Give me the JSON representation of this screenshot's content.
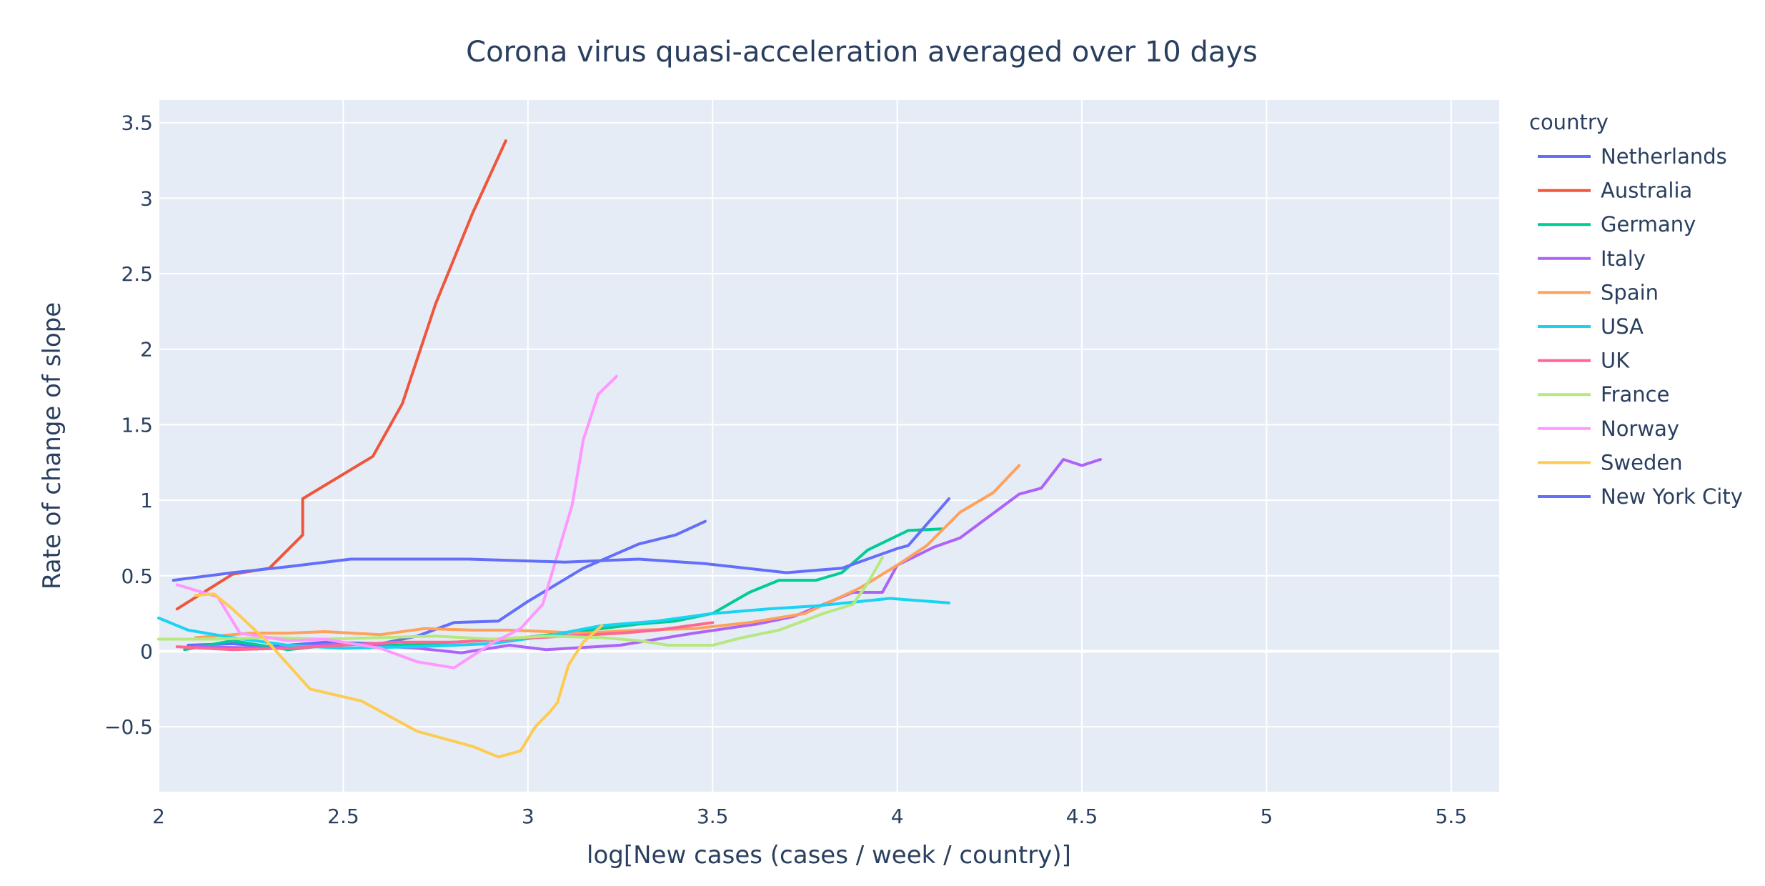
{
  "chart_data": {
    "type": "line",
    "title": "Corona virus quasi-acceleration averaged over 10 days",
    "xlabel": "log[New cases (cases / week / country)]",
    "ylabel": "Rate of change of slope",
    "xlim": [
      2.0,
      5.63
    ],
    "ylim": [
      -0.93,
      3.65
    ],
    "x_ticks": [
      2,
      2.5,
      3,
      3.5,
      4,
      4.5,
      5,
      5.5
    ],
    "x_tick_labels": [
      "2",
      "2.5",
      "3",
      "3.5",
      "4",
      "4.5",
      "5",
      "5.5"
    ],
    "y_ticks": [
      -0.5,
      0,
      0.5,
      1,
      1.5,
      2,
      2.5,
      3,
      3.5
    ],
    "y_tick_labels": [
      "−0.5",
      "0",
      "0.5",
      "1",
      "1.5",
      "2",
      "2.5",
      "3",
      "3.5"
    ],
    "grid": true,
    "legend_title": "country",
    "legend_position": "right",
    "series": [
      {
        "name": "Netherlands",
        "color": "#636efa",
        "points": [
          [
            2.08,
            0.04
          ],
          [
            2.2,
            0.05
          ],
          [
            2.3,
            0.03
          ],
          [
            2.45,
            0.06
          ],
          [
            2.6,
            0.05
          ],
          [
            2.7,
            0.1
          ],
          [
            2.8,
            0.19
          ],
          [
            2.92,
            0.2
          ],
          [
            3.0,
            0.33
          ],
          [
            3.15,
            0.55
          ],
          [
            3.3,
            0.71
          ],
          [
            3.4,
            0.77
          ],
          [
            3.48,
            0.86
          ]
        ]
      },
      {
        "name": "Australia",
        "color": "#ef553b",
        "points": [
          [
            2.05,
            0.28
          ],
          [
            2.2,
            0.51
          ],
          [
            2.3,
            0.55
          ],
          [
            2.39,
            0.77
          ],
          [
            2.39,
            1.01
          ],
          [
            2.58,
            1.29
          ],
          [
            2.66,
            1.64
          ],
          [
            2.75,
            2.3
          ],
          [
            2.85,
            2.9
          ],
          [
            2.94,
            3.38
          ]
        ]
      },
      {
        "name": "Germany",
        "color": "#00cc96",
        "points": [
          [
            2.07,
            0.01
          ],
          [
            2.2,
            0.07
          ],
          [
            2.35,
            0.01
          ],
          [
            2.5,
            0.05
          ],
          [
            2.65,
            0.04
          ],
          [
            2.8,
            0.06
          ],
          [
            2.95,
            0.08
          ],
          [
            3.1,
            0.12
          ],
          [
            3.3,
            0.18
          ],
          [
            3.4,
            0.2
          ],
          [
            3.5,
            0.25
          ],
          [
            3.6,
            0.39
          ],
          [
            3.68,
            0.47
          ],
          [
            3.78,
            0.47
          ],
          [
            3.85,
            0.52
          ],
          [
            3.92,
            0.67
          ],
          [
            4.03,
            0.8
          ],
          [
            4.12,
            0.81
          ]
        ]
      },
      {
        "name": "Italy",
        "color": "#ab63fa",
        "points": [
          [
            2.1,
            0.03
          ],
          [
            2.3,
            0.02
          ],
          [
            2.5,
            0.05
          ],
          [
            2.7,
            0.02
          ],
          [
            2.82,
            -0.01
          ],
          [
            2.95,
            0.04
          ],
          [
            3.05,
            0.01
          ],
          [
            3.25,
            0.04
          ],
          [
            3.45,
            0.12
          ],
          [
            3.62,
            0.18
          ],
          [
            3.72,
            0.23
          ],
          [
            3.88,
            0.39
          ],
          [
            3.96,
            0.39
          ],
          [
            4.0,
            0.57
          ],
          [
            4.1,
            0.69
          ],
          [
            4.17,
            0.75
          ],
          [
            4.33,
            1.04
          ],
          [
            4.39,
            1.08
          ],
          [
            4.45,
            1.27
          ],
          [
            4.5,
            1.23
          ],
          [
            4.55,
            1.27
          ]
        ]
      },
      {
        "name": "Spain",
        "color": "#ffa15a",
        "points": [
          [
            2.1,
            0.09
          ],
          [
            2.25,
            0.12
          ],
          [
            2.35,
            0.12
          ],
          [
            2.45,
            0.13
          ],
          [
            2.6,
            0.11
          ],
          [
            2.72,
            0.15
          ],
          [
            2.85,
            0.14
          ],
          [
            2.95,
            0.14
          ],
          [
            3.05,
            0.13
          ],
          [
            3.15,
            0.12
          ],
          [
            3.3,
            0.14
          ],
          [
            3.45,
            0.15
          ],
          [
            3.6,
            0.19
          ],
          [
            3.75,
            0.25
          ],
          [
            3.9,
            0.42
          ],
          [
            4.0,
            0.57
          ],
          [
            4.08,
            0.7
          ],
          [
            4.17,
            0.92
          ],
          [
            4.26,
            1.05
          ],
          [
            4.33,
            1.23
          ]
        ]
      },
      {
        "name": "USA",
        "color": "#19d3f3",
        "points": [
          [
            2.0,
            0.22
          ],
          [
            2.08,
            0.14
          ],
          [
            2.2,
            0.09
          ],
          [
            2.35,
            0.04
          ],
          [
            2.5,
            0.02
          ],
          [
            2.7,
            0.03
          ],
          [
            2.9,
            0.05
          ],
          [
            3.05,
            0.1
          ],
          [
            3.2,
            0.17
          ],
          [
            3.35,
            0.2
          ],
          [
            3.5,
            0.25
          ],
          [
            3.65,
            0.28
          ],
          [
            3.78,
            0.3
          ],
          [
            3.9,
            0.33
          ],
          [
            3.98,
            0.35
          ],
          [
            4.14,
            0.32
          ]
        ]
      },
      {
        "name": "UK",
        "color": "#ff6692",
        "points": [
          [
            2.05,
            0.03
          ],
          [
            2.2,
            0.01
          ],
          [
            2.35,
            0.02
          ],
          [
            2.5,
            0.04
          ],
          [
            2.65,
            0.06
          ],
          [
            2.8,
            0.06
          ],
          [
            2.95,
            0.08
          ],
          [
            3.1,
            0.1
          ],
          [
            3.25,
            0.12
          ],
          [
            3.35,
            0.14
          ],
          [
            3.5,
            0.19
          ]
        ]
      },
      {
        "name": "France",
        "color": "#b6e880",
        "points": [
          [
            2.0,
            0.08
          ],
          [
            2.15,
            0.08
          ],
          [
            2.3,
            0.09
          ],
          [
            2.45,
            0.08
          ],
          [
            2.6,
            0.09
          ],
          [
            2.75,
            0.1
          ],
          [
            2.9,
            0.08
          ],
          [
            3.05,
            0.1
          ],
          [
            3.2,
            0.09
          ],
          [
            3.3,
            0.07
          ],
          [
            3.38,
            0.04
          ],
          [
            3.5,
            0.04
          ],
          [
            3.58,
            0.09
          ],
          [
            3.68,
            0.14
          ],
          [
            3.8,
            0.25
          ],
          [
            3.88,
            0.31
          ],
          [
            3.92,
            0.45
          ],
          [
            3.96,
            0.62
          ]
        ]
      },
      {
        "name": "Norway",
        "color": "#ff97ff",
        "points": [
          [
            2.05,
            0.44
          ],
          [
            2.16,
            0.36
          ],
          [
            2.22,
            0.12
          ],
          [
            2.35,
            0.07
          ],
          [
            2.45,
            0.08
          ],
          [
            2.6,
            0.02
          ],
          [
            2.7,
            -0.07
          ],
          [
            2.8,
            -0.11
          ],
          [
            2.9,
            0.05
          ],
          [
            2.98,
            0.15
          ],
          [
            3.04,
            0.31
          ],
          [
            3.12,
            0.97
          ],
          [
            3.15,
            1.4
          ],
          [
            3.19,
            1.7
          ],
          [
            3.24,
            1.82
          ]
        ]
      },
      {
        "name": "Sweden",
        "color": "#fecb52",
        "points": [
          [
            2.1,
            0.37
          ],
          [
            2.15,
            0.38
          ],
          [
            2.2,
            0.28
          ],
          [
            2.3,
            0.05
          ],
          [
            2.41,
            -0.25
          ],
          [
            2.55,
            -0.33
          ],
          [
            2.7,
            -0.53
          ],
          [
            2.85,
            -0.63
          ],
          [
            2.92,
            -0.7
          ],
          [
            2.98,
            -0.66
          ],
          [
            3.02,
            -0.5
          ],
          [
            3.06,
            -0.4
          ],
          [
            3.08,
            -0.34
          ],
          [
            3.11,
            -0.09
          ],
          [
            3.15,
            0.06
          ],
          [
            3.2,
            0.17
          ]
        ]
      },
      {
        "name": "New York City",
        "color": "#636efa",
        "points": [
          [
            2.04,
            0.47
          ],
          [
            2.2,
            0.52
          ],
          [
            2.35,
            0.56
          ],
          [
            2.52,
            0.61
          ],
          [
            2.6,
            0.61
          ],
          [
            2.84,
            0.61
          ],
          [
            3.1,
            0.59
          ],
          [
            3.3,
            0.61
          ],
          [
            3.48,
            0.58
          ],
          [
            3.7,
            0.52
          ],
          [
            3.85,
            0.55
          ],
          [
            4.0,
            0.68
          ],
          [
            4.03,
            0.7
          ],
          [
            4.14,
            1.01
          ]
        ]
      }
    ]
  }
}
